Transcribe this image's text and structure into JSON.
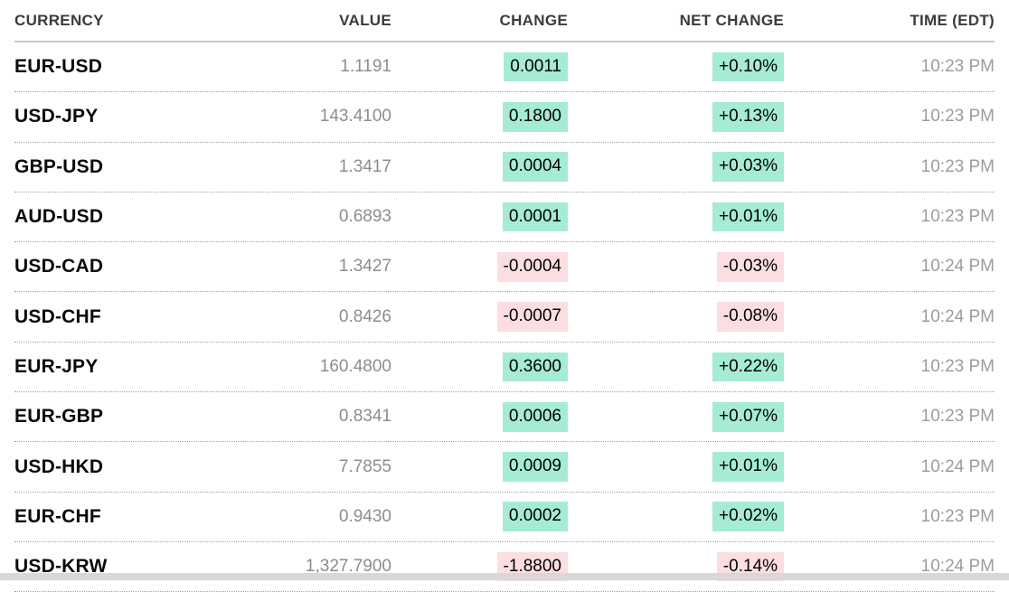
{
  "table": {
    "columns": [
      {
        "label": "CURRENCY",
        "align": "left"
      },
      {
        "label": "VALUE",
        "align": "right"
      },
      {
        "label": "CHANGE",
        "align": "right"
      },
      {
        "label": "NET CHANGE",
        "align": "right"
      },
      {
        "label": "TIME (EDT)",
        "align": "right"
      }
    ],
    "rows": [
      {
        "currency": "EUR-USD",
        "value": "1.1191",
        "change": "0.0011",
        "net_change": "+0.10%",
        "time": "10:23 PM",
        "direction": "up"
      },
      {
        "currency": "USD-JPY",
        "value": "143.4100",
        "change": "0.1800",
        "net_change": "+0.13%",
        "time": "10:23 PM",
        "direction": "up"
      },
      {
        "currency": "GBP-USD",
        "value": "1.3417",
        "change": "0.0004",
        "net_change": "+0.03%",
        "time": "10:23 PM",
        "direction": "up"
      },
      {
        "currency": "AUD-USD",
        "value": "0.6893",
        "change": "0.0001",
        "net_change": "+0.01%",
        "time": "10:23 PM",
        "direction": "up"
      },
      {
        "currency": "USD-CAD",
        "value": "1.3427",
        "change": "-0.0004",
        "net_change": "-0.03%",
        "time": "10:24 PM",
        "direction": "down"
      },
      {
        "currency": "USD-CHF",
        "value": "0.8426",
        "change": "-0.0007",
        "net_change": "-0.08%",
        "time": "10:24 PM",
        "direction": "down"
      },
      {
        "currency": "EUR-JPY",
        "value": "160.4800",
        "change": "0.3600",
        "net_change": "+0.22%",
        "time": "10:23 PM",
        "direction": "up"
      },
      {
        "currency": "EUR-GBP",
        "value": "0.8341",
        "change": "0.0006",
        "net_change": "+0.07%",
        "time": "10:23 PM",
        "direction": "up"
      },
      {
        "currency": "USD-HKD",
        "value": "7.7855",
        "change": "0.0009",
        "net_change": "+0.01%",
        "time": "10:24 PM",
        "direction": "up"
      },
      {
        "currency": "EUR-CHF",
        "value": "0.9430",
        "change": "0.0002",
        "net_change": "+0.02%",
        "time": "10:23 PM",
        "direction": "up"
      },
      {
        "currency": "USD-KRW",
        "value": "1,327.7900",
        "change": "-1.8800",
        "net_change": "-0.14%",
        "time": "10:24 PM",
        "direction": "down"
      }
    ],
    "colors": {
      "positive_bg": "#a5ecd3",
      "negative_bg": "#fcdee2",
      "badge_text": "#000000",
      "header_text": "#3b3b3f",
      "pair_text": "#0a0a0a",
      "value_text": "#8d8d8d",
      "time_text": "#9c9c9c",
      "header_rule": "#c9c9c9",
      "row_dotted_rule": "#a3a3a3",
      "bottom_bar": "#d8d8d8"
    }
  }
}
